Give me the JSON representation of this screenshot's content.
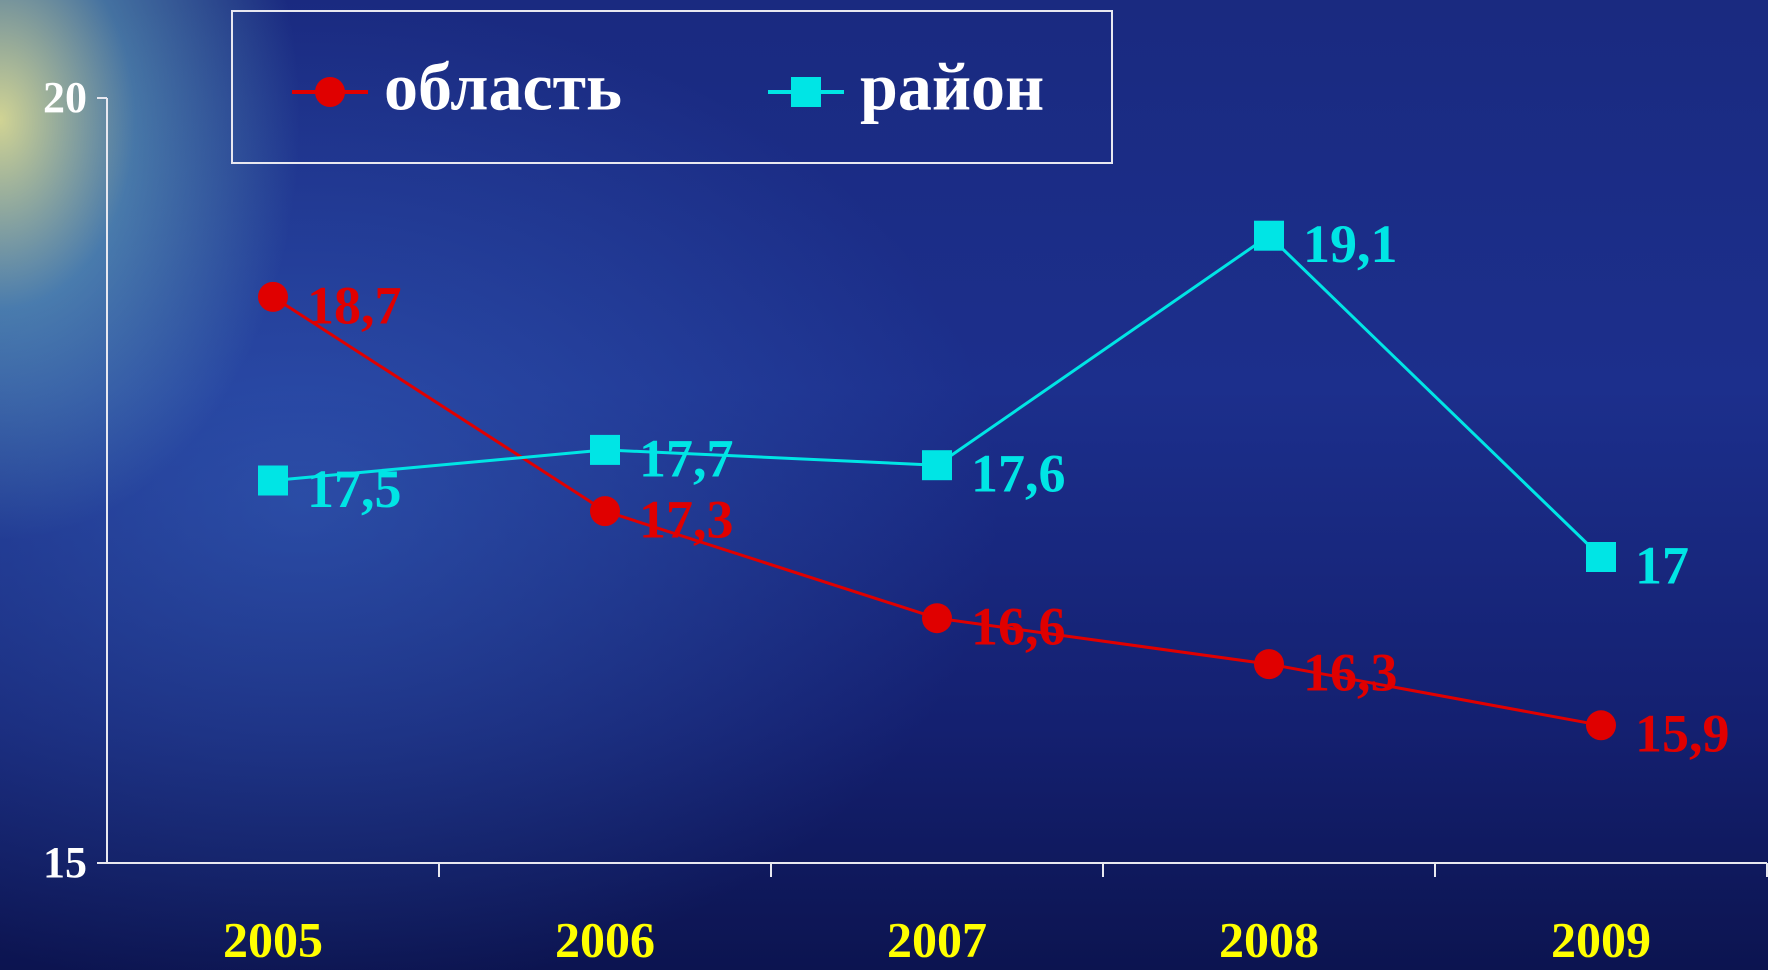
{
  "chart_data": {
    "type": "line",
    "categories": [
      "2005",
      "2006",
      "2007",
      "2008",
      "2009"
    ],
    "series": [
      {
        "name": "область",
        "color": "#e00000",
        "marker": "circle",
        "values": [
          18.7,
          17.3,
          16.6,
          16.3,
          15.9
        ],
        "value_labels": [
          "18,7",
          "17,3",
          "16,6",
          "16,3",
          "15,9"
        ]
      },
      {
        "name": "район",
        "color": "#00e5e5",
        "marker": "square",
        "values": [
          17.5,
          17.7,
          17.6,
          19.1,
          17
        ],
        "value_labels": [
          "17,5",
          "17,7",
          "17,6",
          "19,1",
          "17"
        ]
      }
    ],
    "ylim": [
      15,
      20
    ],
    "yticks": [
      15,
      20
    ],
    "grid": false,
    "legend": "top"
  }
}
